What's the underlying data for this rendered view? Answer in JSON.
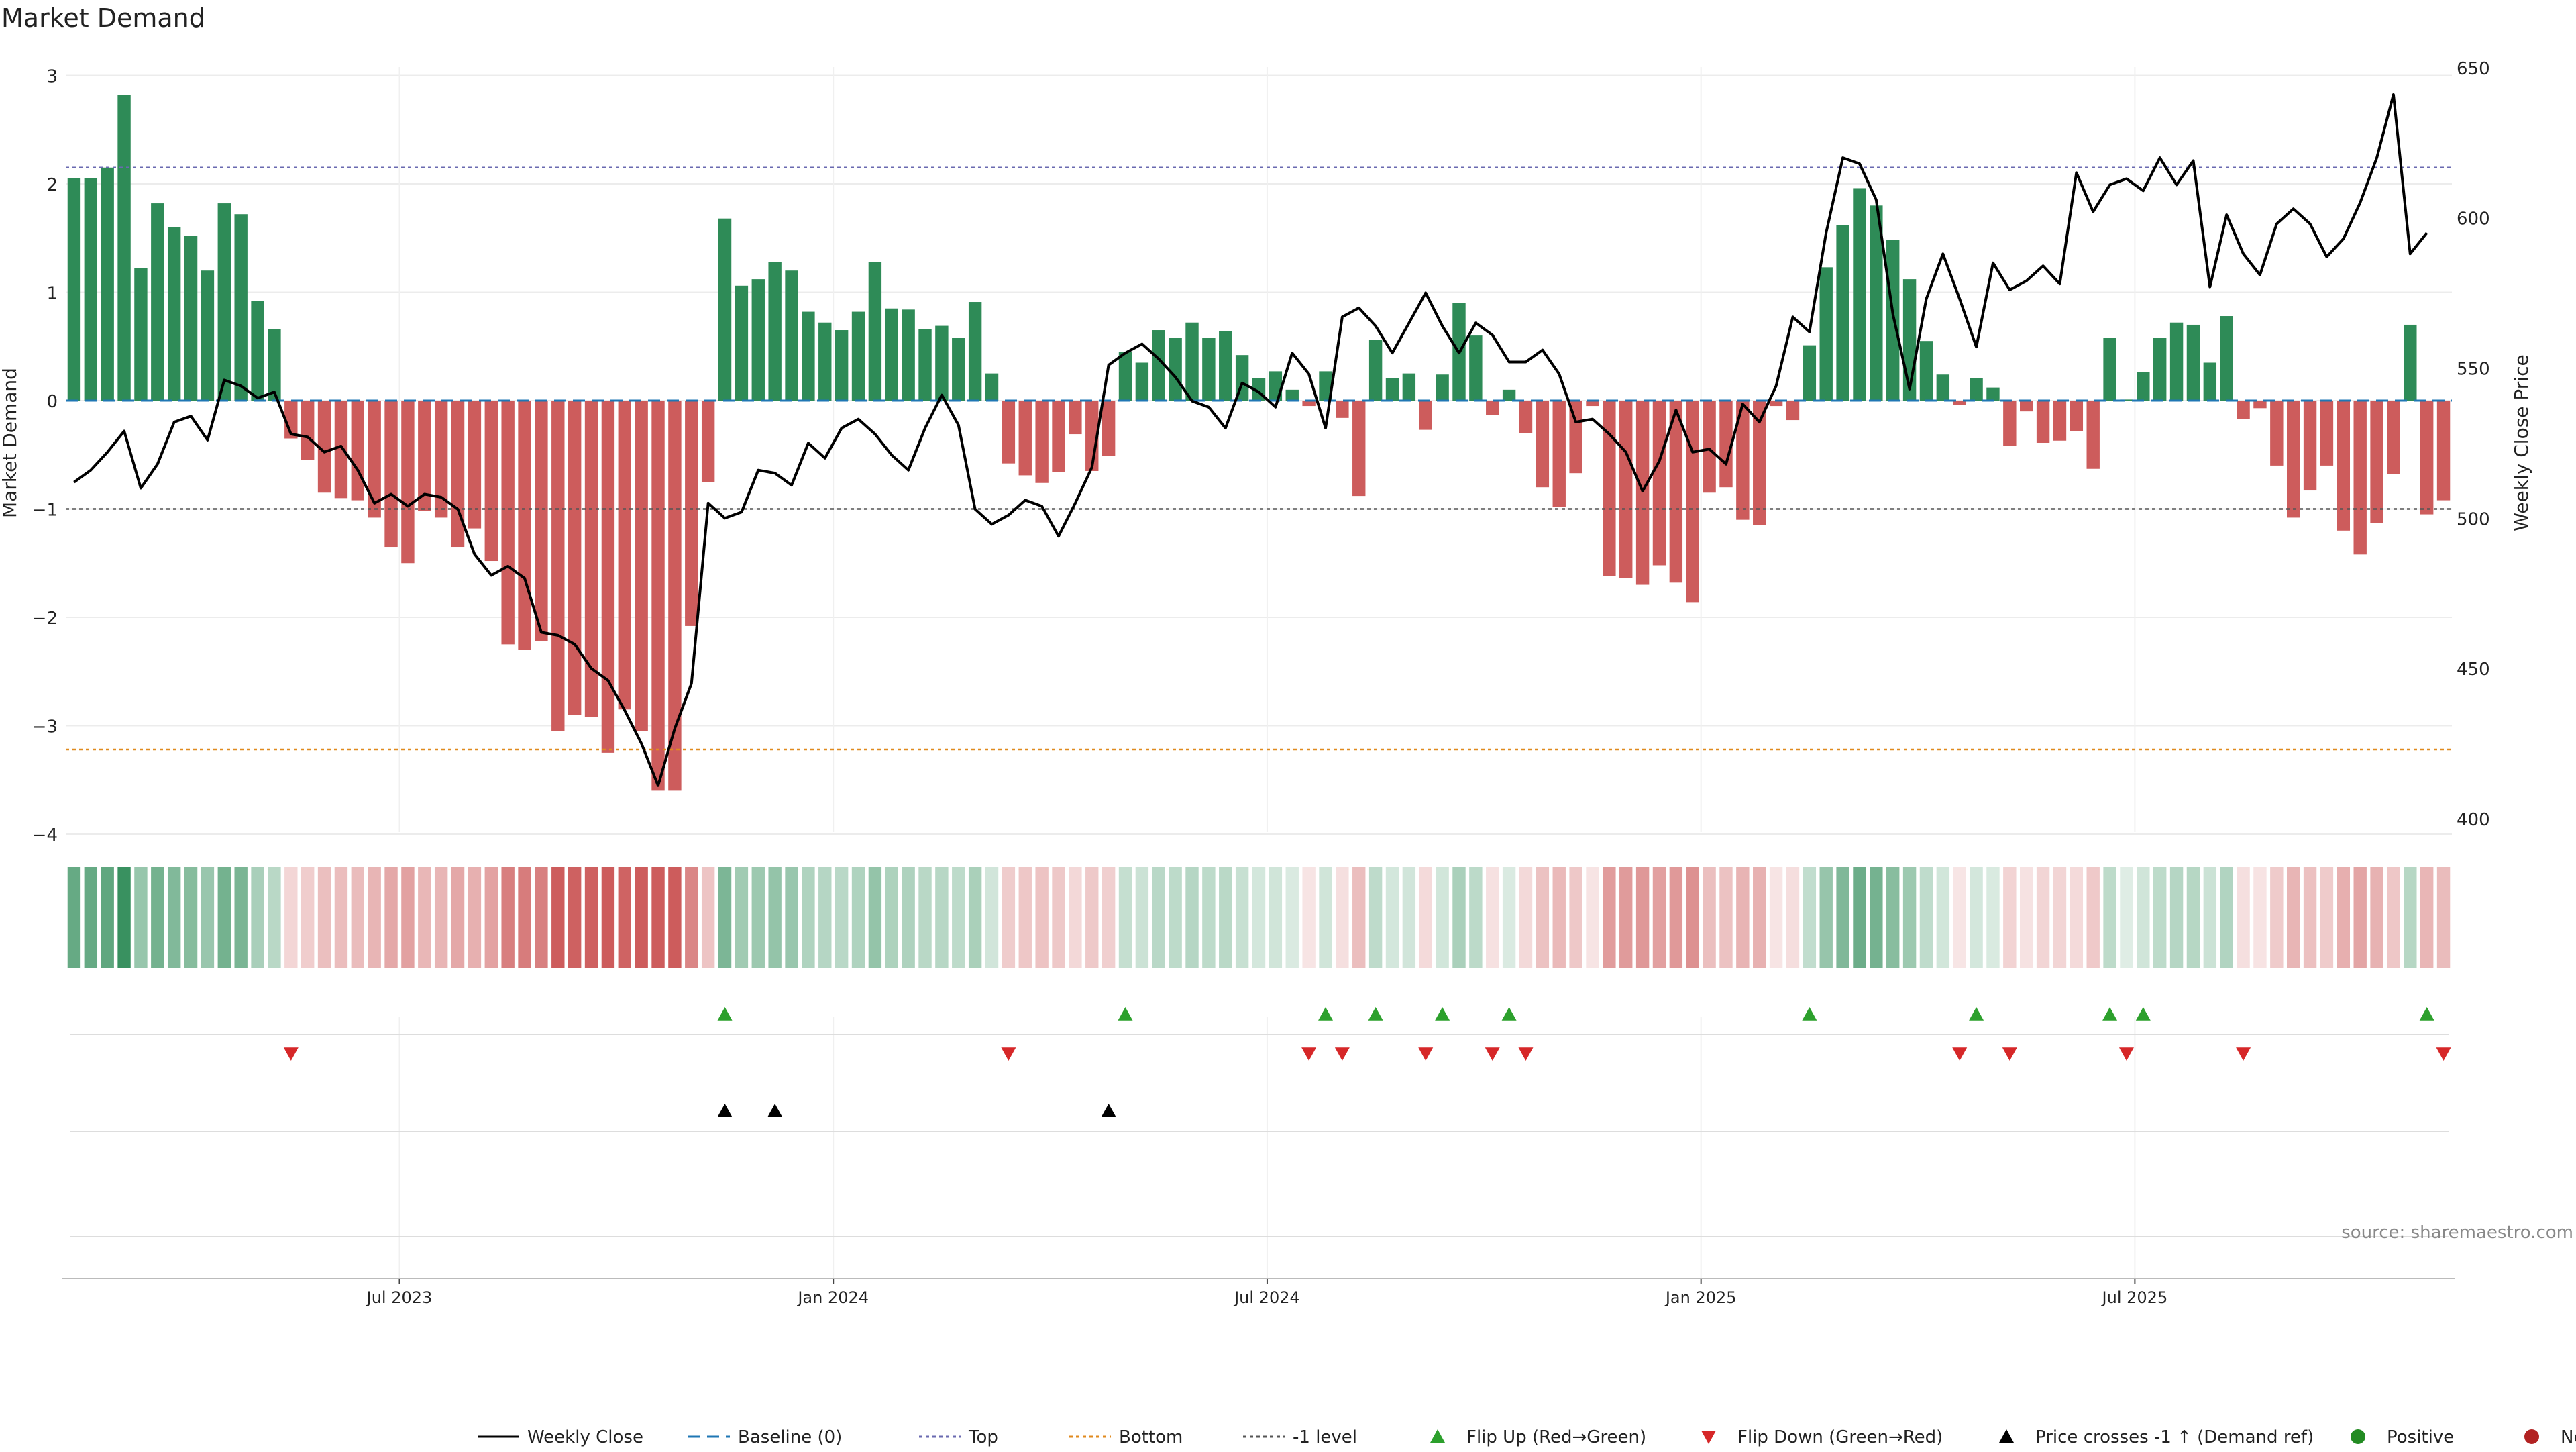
{
  "chart_data": {
    "type": "bar",
    "title": "Market Demand",
    "ylabel": "Market Demand",
    "y2label": "Weekly Close Price",
    "ylim": [
      -4,
      3
    ],
    "y2lim": [
      400,
      650
    ],
    "yticks": [
      3,
      2,
      1,
      0,
      -1,
      -2,
      -3,
      -4
    ],
    "yticklabels": [
      "3",
      "2",
      "1",
      "0",
      "−1",
      "−2",
      "−3",
      "−4"
    ],
    "y2ticks": [
      650,
      600,
      550,
      500,
      450,
      400
    ],
    "y2ticklabels": [
      "650",
      "600",
      "550",
      "500",
      "450",
      "400"
    ],
    "xticks": [
      {
        "label": "Jul 2023",
        "index": 20
      },
      {
        "label": "Jan 2024",
        "index": 46
      },
      {
        "label": "Jul 2024",
        "index": 72
      },
      {
        "label": "Jan 2025",
        "index": 98
      },
      {
        "label": "Jul 2025",
        "index": 124
      }
    ],
    "reference_lines": {
      "top": 2.15,
      "bottom": -3.22,
      "minus_one": -1,
      "baseline": 0
    },
    "demand": [
      2.05,
      2.05,
      2.15,
      2.82,
      1.22,
      1.82,
      1.6,
      1.52,
      1.2,
      1.82,
      1.72,
      0.92,
      0.66,
      -0.35,
      -0.55,
      -0.85,
      -0.9,
      -0.92,
      -1.08,
      -1.35,
      -1.5,
      -1.02,
      -1.08,
      -1.35,
      -1.18,
      -1.48,
      -2.25,
      -2.3,
      -2.22,
      -3.05,
      -2.9,
      -2.92,
      -3.25,
      -2.85,
      -3.05,
      -3.6,
      -3.6,
      -2.08,
      -0.75,
      1.68,
      1.06,
      1.12,
      1.28,
      1.2,
      0.82,
      0.72,
      0.65,
      0.82,
      1.28,
      0.85,
      0.84,
      0.66,
      0.69,
      0.58,
      0.91,
      0.25,
      -0.58,
      -0.69,
      -0.76,
      -0.66,
      -0.31,
      -0.65,
      -0.51,
      0.45,
      0.35,
      0.65,
      0.58,
      0.72,
      0.58,
      0.64,
      0.42,
      0.21,
      0.27,
      0.1,
      -0.05,
      0.27,
      -0.16,
      -0.88,
      0.56,
      0.21,
      0.25,
      -0.27,
      0.24,
      0.9,
      0.6,
      -0.13,
      0.1,
      -0.3,
      -0.8,
      -0.98,
      -0.67,
      -0.05,
      -1.62,
      -1.64,
      -1.7,
      -1.52,
      -1.68,
      -1.86,
      -0.85,
      -0.8,
      -1.1,
      -1.15,
      -0.05,
      -0.18,
      0.51,
      1.23,
      1.62,
      1.96,
      1.8,
      1.48,
      1.12,
      0.55,
      0.24,
      -0.04,
      0.21,
      0.12,
      -0.42,
      -0.1,
      -0.39,
      -0.37,
      -0.28,
      -0.63,
      0.58,
      0.01,
      0.26,
      0.58,
      0.72,
      0.7,
      0.35,
      0.78,
      -0.17,
      -0.07,
      -0.6,
      -1.08,
      -0.83,
      -0.6,
      -1.2,
      -1.42,
      -1.13,
      -0.68,
      0.7,
      -1.05,
      -0.92
    ],
    "price": [
      512,
      516,
      522,
      529,
      510,
      518,
      532,
      534,
      526,
      546,
      544,
      540,
      542,
      528,
      527,
      522,
      524,
      516,
      505,
      508,
      504,
      508,
      507,
      503,
      488,
      481,
      484,
      480,
      462,
      461,
      458,
      450,
      446,
      436,
      425,
      411,
      430,
      445,
      505,
      500,
      502,
      516,
      515,
      511,
      525,
      520,
      530,
      533,
      528,
      521,
      516,
      530,
      541,
      531,
      503,
      498,
      501,
      506,
      504,
      494,
      505,
      517,
      551,
      555,
      558,
      553,
      547,
      539,
      537,
      530,
      545,
      542,
      537,
      555,
      548,
      530,
      567,
      570,
      564,
      555,
      565,
      575,
      564,
      555,
      565,
      561,
      552,
      552,
      556,
      548,
      532,
      533,
      528,
      522,
      509,
      519,
      536,
      522,
      523,
      518,
      538,
      532,
      544,
      567,
      562,
      595,
      620,
      618,
      606,
      568,
      543,
      573,
      588,
      573,
      557,
      585,
      576,
      579,
      584,
      578,
      615,
      602,
      611,
      613,
      609,
      620,
      611,
      619,
      577,
      601,
      588,
      581,
      598,
      603,
      598,
      587,
      593,
      605,
      620,
      641,
      588,
      595
    ],
    "series_colors": {
      "positive": "#2e8b57",
      "negative": "#cd5c5c",
      "price": "#000000",
      "top": "#6a6ab0",
      "bottom": "#e08a1e",
      "minus_one": "#555555",
      "flip_up": "#2ca02c",
      "flip_down": "#d62728",
      "cross": "#000000"
    },
    "events": {
      "flip_up": [
        39,
        63,
        75,
        78,
        82,
        86,
        104,
        114,
        122,
        124,
        141
      ],
      "flip_down": [
        13,
        56,
        74,
        76,
        81,
        85,
        87,
        113,
        116,
        123,
        130,
        142
      ],
      "price_cross": [
        39,
        42,
        62
      ]
    },
    "legend": [
      {
        "label": "Weekly Close",
        "kind": "line"
      },
      {
        "label": "Baseline (0)",
        "kind": "dash"
      },
      {
        "label": "Top",
        "kind": "dot-top"
      },
      {
        "label": "Bottom",
        "kind": "dot-bottom"
      },
      {
        "label": "-1 level",
        "kind": "dot-minus"
      },
      {
        "label": "Flip Up (Red→Green)",
        "kind": "tri-up"
      },
      {
        "label": "Flip Down (Green→Red)",
        "kind": "tri-down"
      },
      {
        "label": "Price crosses -1 ↑ (Demand ref)",
        "kind": "tri-black"
      },
      {
        "label": "Positive",
        "kind": "dot-green"
      },
      {
        "label": "Negative",
        "kind": "dot-red"
      }
    ],
    "source": "source: sharemaestro.com"
  }
}
